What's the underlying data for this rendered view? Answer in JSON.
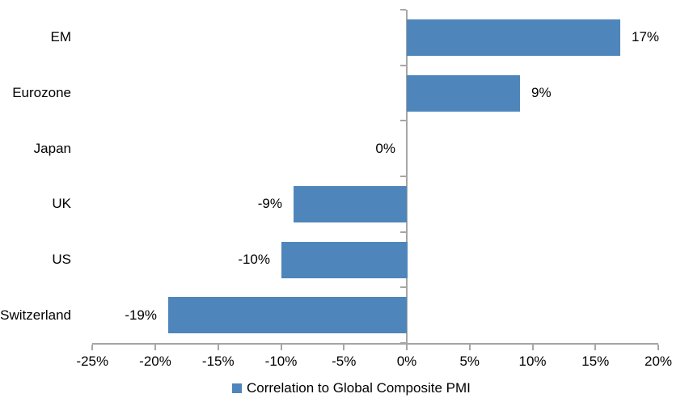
{
  "chart_data": {
    "type": "bar",
    "orientation": "horizontal",
    "title": "",
    "categories": [
      "EM",
      "Eurozone",
      "Japan",
      "UK",
      "US",
      "Switzerland"
    ],
    "values": [
      17,
      9,
      0,
      -9,
      -10,
      -19
    ],
    "value_labels": [
      "17%",
      "9%",
      "0%",
      "-9%",
      "-10%",
      "-19%"
    ],
    "x_ticks": [
      "-25%",
      "-20%",
      "-15%",
      "-10%",
      "-5%",
      "0%",
      "5%",
      "10%",
      "15%",
      "20%"
    ],
    "x_tick_values": [
      -25,
      -20,
      -15,
      -10,
      -5,
      0,
      5,
      10,
      15,
      20
    ],
    "xlim": [
      -25,
      20
    ],
    "grid": false,
    "legend_position": "bottom",
    "legend_label": "Correlation to Global Composite PMI",
    "bar_color": "#4E86BB",
    "axis_color": "#A6A6A6",
    "text_color": "#000000"
  }
}
